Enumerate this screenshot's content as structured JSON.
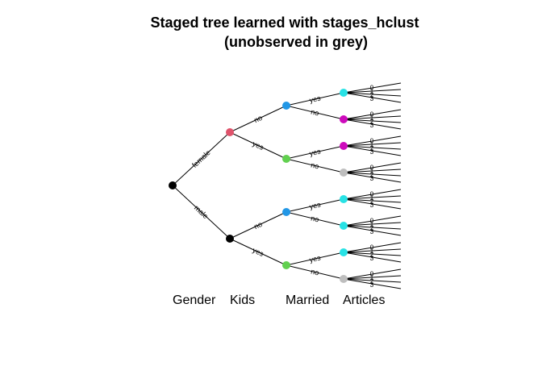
{
  "title": {
    "line1": "Staged tree learned with stages_hclust",
    "line2": "(unobserved in grey)"
  },
  "variables": [
    "Gender",
    "Kids",
    "Married",
    "Articles"
  ],
  "levels": {
    "Gender": [
      "female",
      "male"
    ],
    "Kids": [
      "no",
      "yes"
    ],
    "Married": [
      "yes",
      "no"
    ],
    "Articles": [
      "0",
      "1",
      "2",
      "3"
    ]
  },
  "stage_colors": {
    "root": "#000000",
    "gender_female": "#DF536B",
    "gender_male": "#000000",
    "kids_no": "#2297E6",
    "kids_yes": "#61D04F",
    "married_a": "#28E2E5",
    "married_b": "#CD0BBC",
    "unobserved": "#BEBEBE"
  },
  "node_stages": {
    "level1": [
      "gender_female",
      "gender_male"
    ],
    "level2": [
      "kids_no",
      "kids_yes",
      "kids_no",
      "kids_yes"
    ],
    "level3": [
      "married_a",
      "married_b",
      "married_b",
      "unobserved",
      "married_a",
      "married_a",
      "married_a",
      "unobserved"
    ]
  }
}
